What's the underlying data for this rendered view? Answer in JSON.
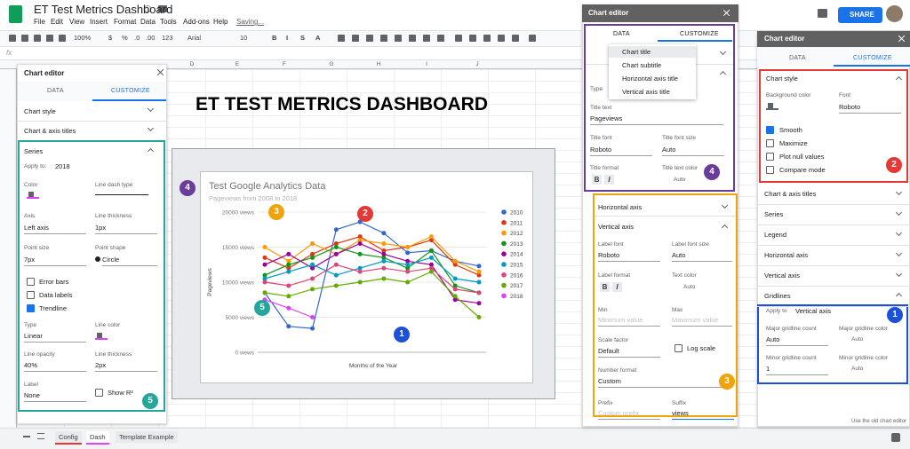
{
  "topbar": {
    "title": "ET Test Metrics Dashboard",
    "menu": [
      "File",
      "Edit",
      "View",
      "Insert",
      "Format",
      "Data",
      "Tools",
      "Add-ons",
      "Help"
    ],
    "saving": "Saving...",
    "share": "SHARE"
  },
  "toolbar": [
    "100%",
    "$",
    "%",
    ".0",
    ".00",
    "123",
    "Arial",
    "10",
    "B",
    "I",
    "S",
    "A"
  ],
  "formula_label": "fx",
  "columns": [
    "D",
    "E",
    "F",
    "G",
    "H",
    "I",
    "J"
  ],
  "sheet_heading": "ET TEST METRICS DASHBOARD",
  "chart_data": {
    "type": "line",
    "title": "Test Google Analytics Data",
    "subtitle": "Pageviews from 2008 to 2018",
    "x_label": "Months of the Year",
    "y_label": "Pageviews",
    "categories": [
      null,
      null,
      null,
      null,
      null,
      null,
      null,
      null,
      null,
      null
    ],
    "ylim": [
      0,
      20000
    ],
    "yticks": [
      {
        "value": 0,
        "label": "0 views"
      },
      {
        "value": 5000,
        "label": "5000 views"
      },
      {
        "value": 10000,
        "label": "10000 views"
      },
      {
        "value": 15000,
        "label": "15000 views"
      },
      {
        "value": 20000,
        "label": "20000 views"
      }
    ],
    "grid": true,
    "legend": "right",
    "series": [
      {
        "name": "2010",
        "color": "#3366cc",
        "values": [
          8500,
          3700,
          3400,
          17500,
          18600,
          17000,
          14200,
          14500,
          13000,
          12300
        ]
      },
      {
        "name": "2011",
        "color": "#dc3912",
        "values": [
          13500,
          12000,
          14000,
          15500,
          16500,
          14500,
          15000,
          16000,
          12500,
          11000
        ]
      },
      {
        "name": "2012",
        "color": "#ff9900",
        "values": [
          15000,
          13000,
          15500,
          14000,
          16000,
          15500,
          15000,
          16500,
          13000,
          11500
        ]
      },
      {
        "name": "2013",
        "color": "#109618",
        "values": [
          11000,
          12500,
          13500,
          15000,
          14000,
          13500,
          12000,
          14500,
          9500,
          8500
        ]
      },
      {
        "name": "2014",
        "color": "#990099",
        "values": [
          12500,
          14000,
          12000,
          14000,
          15500,
          14000,
          13000,
          12500,
          7500,
          7000
        ]
      },
      {
        "name": "2015",
        "color": "#0099c6",
        "values": [
          10500,
          11500,
          12500,
          11000,
          12000,
          13000,
          12500,
          13500,
          10500,
          10000
        ]
      },
      {
        "name": "2016",
        "color": "#dd4477",
        "values": [
          10000,
          9500,
          10500,
          12500,
          11500,
          12000,
          11500,
          12000,
          9000,
          8500
        ]
      },
      {
        "name": "2017",
        "color": "#66aa00",
        "values": [
          8500,
          8000,
          9000,
          9500,
          10000,
          10500,
          10000,
          11500,
          8000,
          5000
        ]
      },
      {
        "name": "2018",
        "color": "#e040fb",
        "values": [
          7500,
          6300,
          5000,
          null,
          null,
          null,
          null,
          null,
          null,
          null
        ]
      }
    ]
  },
  "left_editor": {
    "title": "Chart editor",
    "tabs": [
      "DATA",
      "CUSTOMIZE"
    ],
    "sections": [
      "Chart style",
      "Chart & axis titles"
    ],
    "series": {
      "heading": "Series",
      "apply_to": "Apply to:",
      "apply_value": "2018",
      "color": "Color",
      "dash": "Line dash type",
      "axis": "Axis",
      "axis_value": "Left axis",
      "thickness": "Line thickness",
      "thickness_value": "1px",
      "point_size": "Point size",
      "point_size_value": "7px",
      "point_shape": "Point shape",
      "point_shape_value": "Circle",
      "checks": [
        "Error bars",
        "Data labels",
        "Trendline"
      ],
      "checked": [
        false,
        false,
        true
      ],
      "type": "Type",
      "type_value": "Linear",
      "line_color": "Line color",
      "opacity": "Line opacity",
      "opacity_value": "40%",
      "thickness2": "Line thickness",
      "thickness2_value": "2px",
      "label": "Label",
      "label_value": "None",
      "show_r2": "Show R²"
    }
  },
  "mid_editor": {
    "title": "Chart editor",
    "tabs": [
      "DATA",
      "CUSTOMIZE"
    ],
    "menu": [
      "Chart title",
      "Chart subtitle",
      "Horizontal axis title",
      "Vertical axis title"
    ],
    "type": "Type",
    "title_text": "Title text",
    "title_value": "Pageviews",
    "title_font": "Title font",
    "title_font_value": "Roboto",
    "title_size": "Title font size",
    "title_size_value": "Auto",
    "title_format": "Title format",
    "bold": "B",
    "italic": "I",
    "title_color": "Title text color",
    "title_color_value": "Auto",
    "axis_sections": [
      "Horizontal axis",
      "Vertical axis"
    ],
    "label_font": "Label font",
    "label_font_value": "Roboto",
    "label_size": "Label font size",
    "label_size_value": "Auto",
    "label_format": "Label format",
    "text_color": "Text color",
    "text_color_value": "Auto",
    "min": "Min",
    "min_placeholder": "Minimum value",
    "max": "Max",
    "max_placeholder": "Maximum value",
    "scale": "Scale factor",
    "scale_value": "Default",
    "log": "Log scale",
    "number_format": "Number format",
    "number_format_value": "Custom",
    "prefix": "Prefix",
    "prefix_placeholder": "Custom prefix",
    "suffix": "Suffix",
    "suffix_value": "views"
  },
  "right_editor": {
    "title": "Chart editor",
    "tabs": [
      "DATA",
      "CUSTOMIZE"
    ],
    "style_heading": "Chart style",
    "bg_color": "Background color",
    "font": "Font",
    "font_value": "Roboto",
    "checks": [
      "Smooth",
      "Maximize",
      "Plot null values",
      "Compare mode"
    ],
    "checked": [
      true,
      false,
      false,
      false
    ],
    "sections": [
      "Chart & axis titles",
      "Series",
      "Legend",
      "Horizontal axis",
      "Vertical axis",
      "Gridlines"
    ],
    "apply_to": "Apply to",
    "apply_value": "Vertical axis",
    "major_count": "Major gridline count",
    "major_count_value": "Auto",
    "major_color": "Major gridline color",
    "major_color_value": "Auto",
    "minor_count": "Minor gridline count",
    "minor_count_value": "1",
    "minor_color": "Minor gridline color",
    "minor_color_value": "Auto",
    "footer": "Use the old chart editor"
  },
  "sheet_tabs": [
    "Config",
    "Dash",
    "Template Example"
  ],
  "badges": [
    "5",
    "4",
    "3",
    "2",
    "5",
    "1",
    "4",
    "3",
    "2",
    "1"
  ]
}
